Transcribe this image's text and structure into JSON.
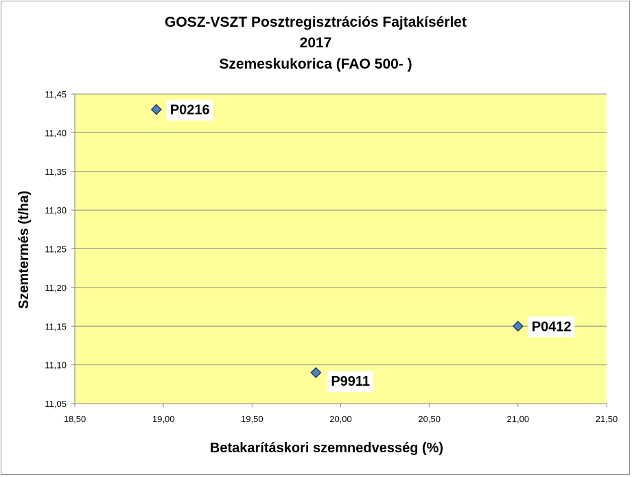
{
  "chart_data": {
    "type": "scatter",
    "title_lines": [
      "GOSZ-VSZT Posztregisztrációs Fajtakísérlet",
      "2017",
      "Szemeskukorica (FAO 500- )"
    ],
    "xlabel": "Betakarításkori szemnedvesség (%)",
    "ylabel": "Szemtermés (t/ha)",
    "xlim": [
      18.5,
      21.5
    ],
    "ylim": [
      11.05,
      11.45
    ],
    "x_ticks": [
      "18,50",
      "19,00",
      "19,50",
      "20,00",
      "20,50",
      "21,00",
      "21,50"
    ],
    "y_ticks": [
      "11,05",
      "11,10",
      "11,15",
      "11,20",
      "11,25",
      "11,30",
      "11,35",
      "11,40",
      "11,45"
    ],
    "grid": "horizontal",
    "legend": "none",
    "points": [
      {
        "label": "P0216",
        "x": 18.96,
        "y": 11.43
      },
      {
        "label": "P9911",
        "x": 19.86,
        "y": 11.09
      },
      {
        "label": "P0412",
        "x": 21.0,
        "y": 11.15
      }
    ],
    "colors": {
      "plot_background": "#ffff99",
      "gridline": "#8c8c8c",
      "marker_fill": "#4f81bd",
      "marker_stroke": "#1f3d6b"
    }
  }
}
